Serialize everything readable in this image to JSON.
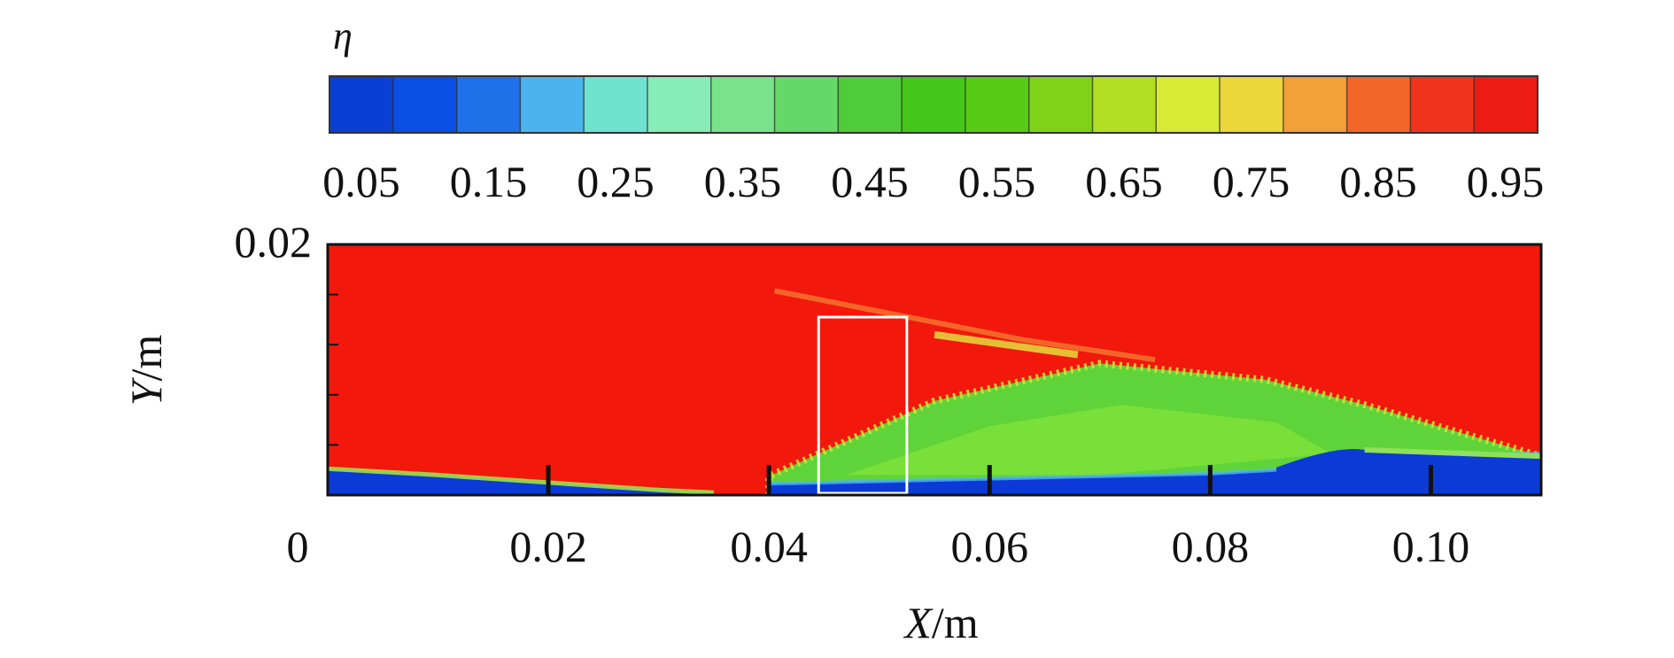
{
  "chart_data": {
    "type": "heatmap",
    "colorbar": {
      "title": "η",
      "tick_labels": [
        "0.05",
        "0.15",
        "0.25",
        "0.35",
        "0.45",
        "0.55",
        "0.65",
        "0.75",
        "0.85",
        "0.95"
      ],
      "bins": 19,
      "colors": [
        "#0a3fd6",
        "#0a4ee6",
        "#2070ea",
        "#4bb3ee",
        "#6fe3d0",
        "#88ecb8",
        "#79e28a",
        "#65d86a",
        "#4fcc3a",
        "#45c71c",
        "#58cc14",
        "#80d218",
        "#b2df22",
        "#d7ea34",
        "#ecd73a",
        "#f2a038",
        "#f26629",
        "#f0341e",
        "#ec1c12"
      ]
    },
    "x_axis": {
      "label": "X/m",
      "range": [
        0,
        0.11
      ],
      "ticks": [
        0,
        0.02,
        0.04,
        0.06,
        0.08,
        0.1
      ],
      "tick_labels": [
        "0",
        "0.02",
        "0.04",
        "0.06",
        "0.08",
        "0.10"
      ]
    },
    "y_axis": {
      "label": "Y/m",
      "range": [
        0,
        0.02
      ],
      "ticks": [
        0,
        0.02
      ],
      "tick_labels": [
        "",
        "0.02"
      ],
      "minor_ticks": [
        0.004,
        0.008,
        0.012,
        0.016
      ]
    },
    "field": {
      "background_value": 0.97,
      "regions": [
        {
          "region": "inlet-jet-layer",
          "eta": 0.05,
          "x": [
            0,
            0.01,
            0.02,
            0.03,
            0.035
          ],
          "y_top": [
            0.0021,
            0.0016,
            0.001,
            0.0004,
            0.0002
          ]
        },
        {
          "region": "wall-layer-downstream",
          "eta": 0.05,
          "x": [
            0.04,
            0.06,
            0.08,
            0.09,
            0.094,
            0.11
          ],
          "y_top": [
            0.0009,
            0.0013,
            0.0017,
            0.0022,
            0.0032,
            0.0033
          ]
        },
        {
          "region": "mixing-plume",
          "eta": 0.55,
          "x": [
            0.04,
            0.055,
            0.07,
            0.085,
            0.094,
            0.11
          ],
          "y_top": [
            0.0015,
            0.0075,
            0.0105,
            0.0092,
            0.0072,
            0.0031
          ]
        }
      ],
      "highlight_box": {
        "x": [
          0.0445,
          0.0525
        ],
        "y": [
          0,
          0.0142
        ],
        "color": "#ffffff"
      },
      "wall_markers_x": [
        0.02,
        0.04,
        0.06,
        0.08,
        0.1
      ]
    },
    "grid": false
  }
}
